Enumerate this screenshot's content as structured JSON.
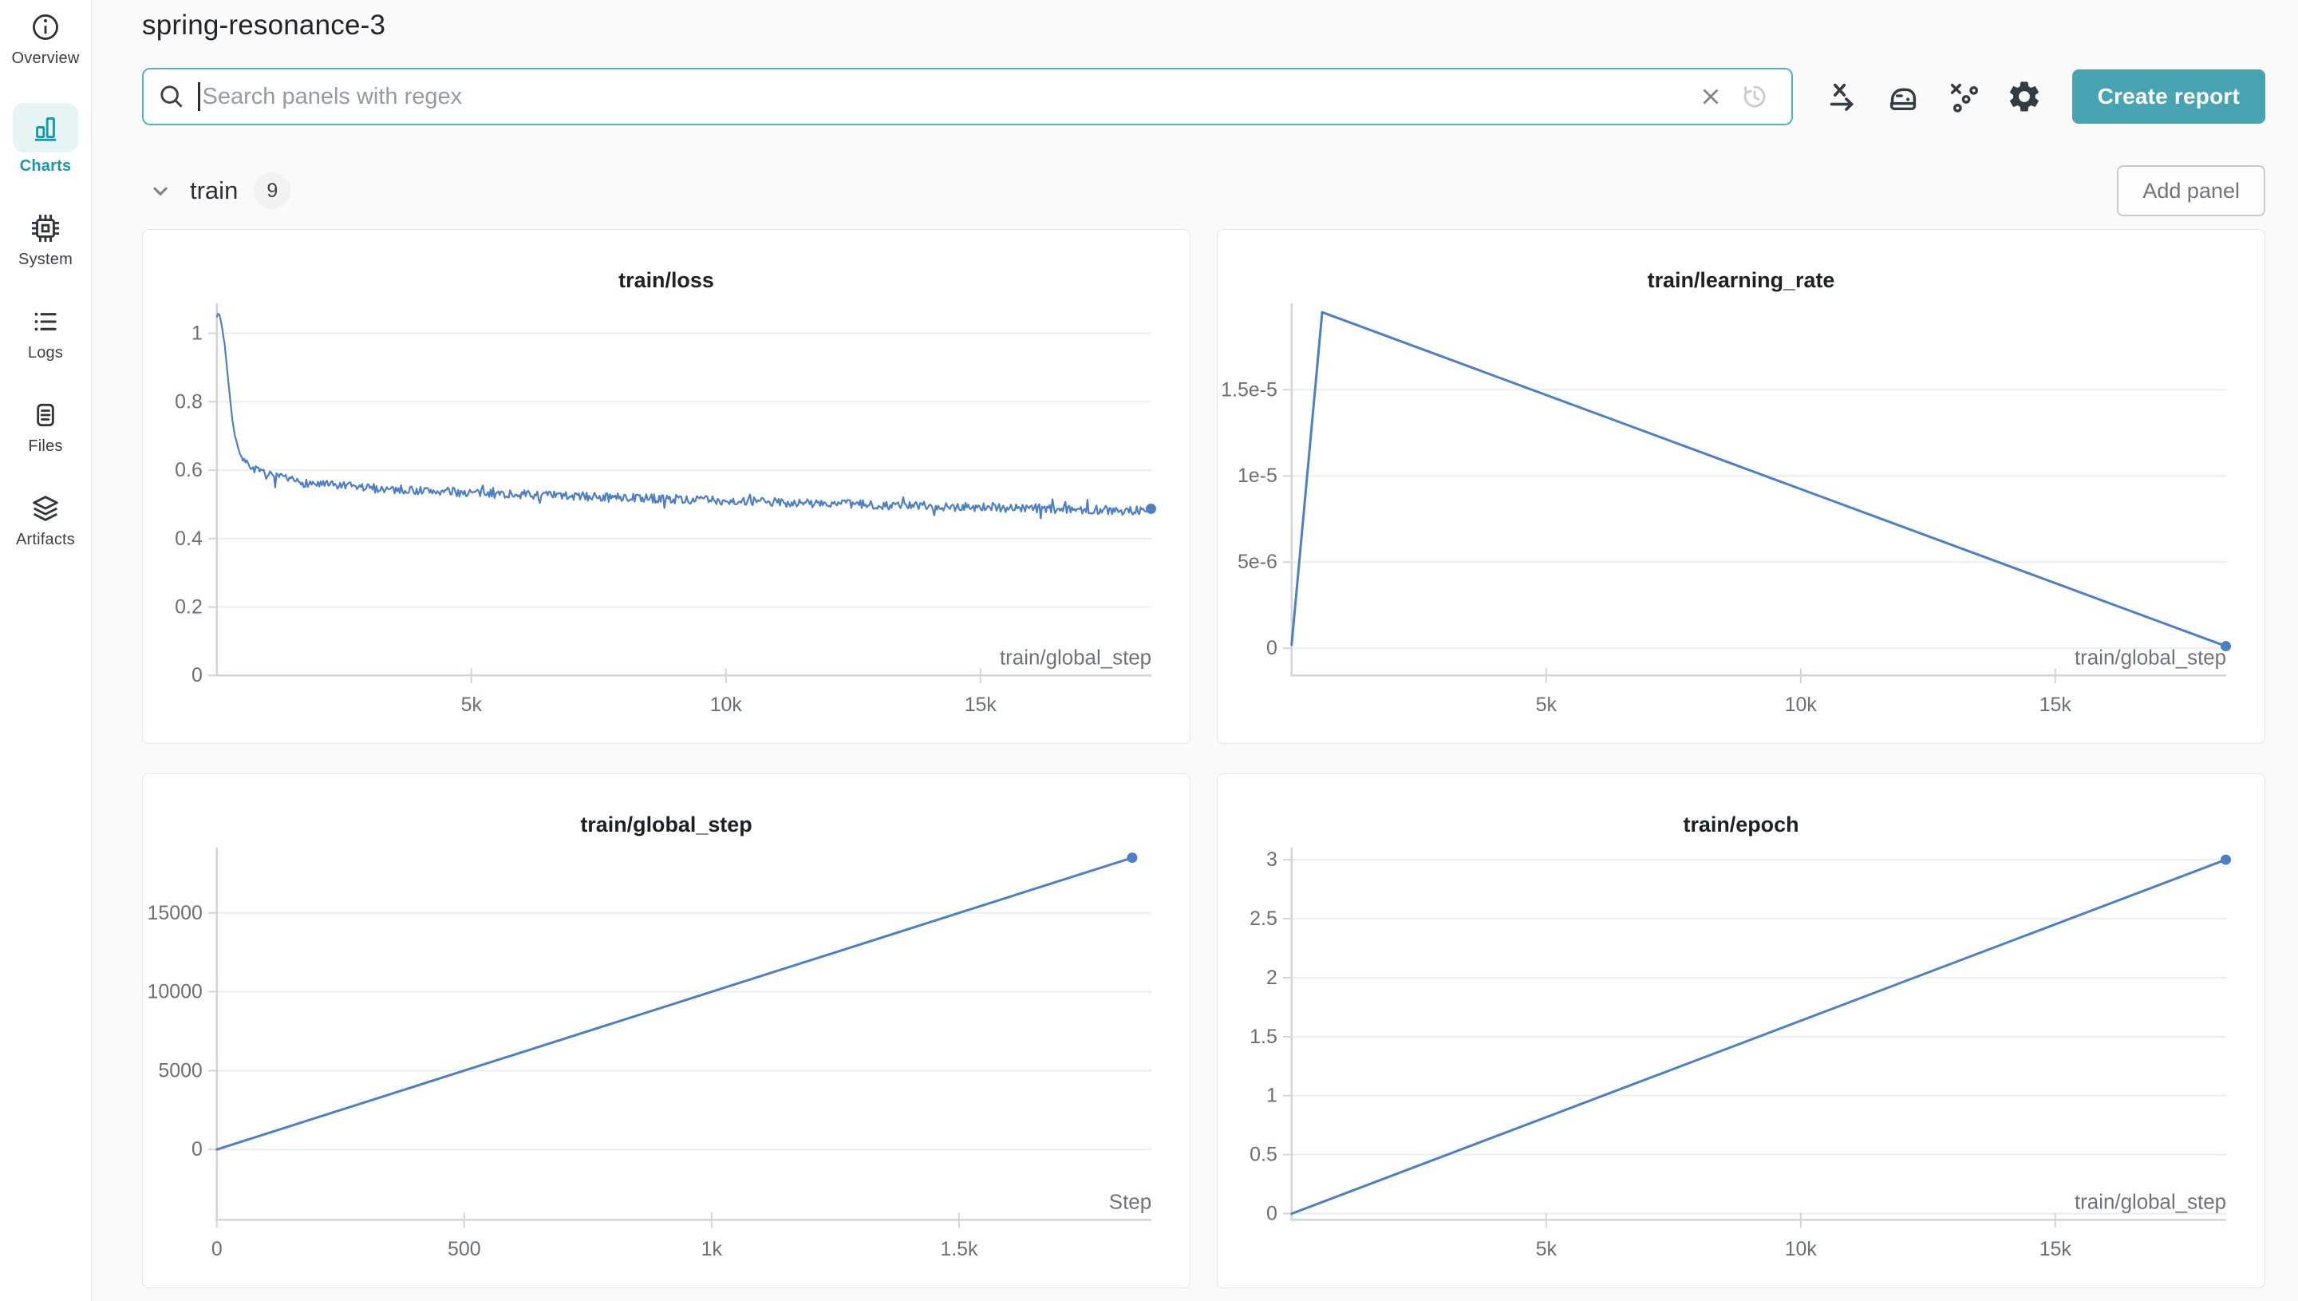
{
  "app": {
    "title": "spring-resonance-3"
  },
  "colors": {
    "accent": "#149aa9",
    "button": "#48a4b2",
    "search_border": "#54b4c1",
    "line_blue": "#4d7fc9",
    "axis": "#d2d5d9",
    "grid": "#ebedef",
    "tick_text": "#697077",
    "label_text": "#6d737a"
  },
  "sidebar": {
    "items": [
      {
        "label": "Overview",
        "icon": "info-icon",
        "active": false
      },
      {
        "label": "Charts",
        "icon": "bar-chart-icon",
        "active": true
      },
      {
        "label": "System",
        "icon": "cpu-icon",
        "active": false
      },
      {
        "label": "Logs",
        "icon": "list-icon",
        "active": false
      },
      {
        "label": "Files",
        "icon": "document-icon",
        "active": false
      },
      {
        "label": "Artifacts",
        "icon": "layers-icon",
        "active": false
      }
    ]
  },
  "search": {
    "placeholder": "Search panels with regex"
  },
  "toolbar": {
    "create_report_label": "Create report",
    "icons": [
      "clear-icon",
      "history-icon",
      "x-axis-icon",
      "smoothing-iron-icon",
      "outliers-icon",
      "gear-icon"
    ]
  },
  "section": {
    "name": "train",
    "count": "9",
    "add_panel_label": "Add panel"
  },
  "chart_data": [
    {
      "type": "noisy_line",
      "title": "train/loss",
      "xlabel": "train/global_step",
      "x_range": [
        0,
        18359
      ],
      "y_range": [
        0,
        1.0698
      ],
      "x_ticks": [
        {
          "v": 5000,
          "label": "5k"
        },
        {
          "v": 10000,
          "label": "10k"
        },
        {
          "v": 15000,
          "label": "15k"
        }
      ],
      "y_ticks": [
        {
          "v": 0,
          "label": "0"
        },
        {
          "v": 0.2,
          "label": "0.2"
        },
        {
          "v": 0.4,
          "label": "0.4"
        },
        {
          "v": 0.6,
          "label": "0.6"
        },
        {
          "v": 0.8,
          "label": "0.8"
        },
        {
          "v": 1,
          "label": "1"
        }
      ],
      "anchors": [
        [
          0,
          1.05
        ],
        [
          40,
          1.06
        ],
        [
          90,
          1.03
        ],
        [
          160,
          0.96
        ],
        [
          240,
          0.84
        ],
        [
          320,
          0.73
        ],
        [
          420,
          0.66
        ],
        [
          550,
          0.625
        ],
        [
          700,
          0.607
        ],
        [
          900,
          0.59
        ],
        [
          1200,
          0.578
        ],
        [
          1600,
          0.565
        ],
        [
          2200,
          0.556
        ],
        [
          3000,
          0.548
        ],
        [
          4000,
          0.54
        ],
        [
          5000,
          0.534
        ],
        [
          6500,
          0.526
        ],
        [
          8000,
          0.52
        ],
        [
          9500,
          0.513
        ],
        [
          11000,
          0.506
        ],
        [
          12500,
          0.5
        ],
        [
          14000,
          0.495
        ],
        [
          15500,
          0.49
        ],
        [
          17000,
          0.485
        ],
        [
          18350,
          0.481
        ]
      ],
      "noise": 0.013,
      "samples": 720,
      "stroke_width": 2.2,
      "end_dot": true,
      "line_color": "#4d7fc9"
    },
    {
      "type": "line",
      "title": "train/learning_rate",
      "xlabel": "train/global_step",
      "x_range": [
        0,
        18359
      ],
      "y_range": [
        -1.58e-06,
        1.966e-05
      ],
      "x_ticks": [
        {
          "v": 5000,
          "label": "5k"
        },
        {
          "v": 10000,
          "label": "10k"
        },
        {
          "v": 15000,
          "label": "15k"
        }
      ],
      "y_ticks": [
        {
          "v": 0,
          "label": "0"
        },
        {
          "v": 5e-06,
          "label": "5e-6"
        },
        {
          "v": 1e-05,
          "label": "1e-5"
        },
        {
          "v": 1.5e-05,
          "label": "1.5e-5"
        }
      ],
      "points": [
        [
          0,
          2e-07
        ],
        [
          600,
          1.95e-05
        ],
        [
          18350,
          1.2e-07
        ]
      ],
      "stroke_width": 3,
      "end_dot": true,
      "line_color": "#4d7fc9"
    },
    {
      "type": "line",
      "title": "train/global_step",
      "xlabel": "Step",
      "x_range": [
        0,
        1889
      ],
      "y_range": [
        -4460,
        18750
      ],
      "x_ticks": [
        {
          "v": 0,
          "label": "0"
        },
        {
          "v": 500,
          "label": "500"
        },
        {
          "v": 1000,
          "label": "1k"
        },
        {
          "v": 1500,
          "label": "1.5k"
        }
      ],
      "y_ticks": [
        {
          "v": 0,
          "label": "0"
        },
        {
          "v": 5000,
          "label": "5000"
        },
        {
          "v": 10000,
          "label": "10000"
        },
        {
          "v": 15000,
          "label": "15000"
        }
      ],
      "points": [
        [
          0,
          0
        ],
        [
          1850,
          18500
        ]
      ],
      "stroke_width": 3,
      "end_dot": true,
      "line_color": "#4d7fc9"
    },
    {
      "type": "line",
      "title": "train/epoch",
      "xlabel": "train/global_step",
      "x_range": [
        0,
        18359
      ],
      "y_range": [
        -0.052,
        3.05
      ],
      "x_ticks": [
        {
          "v": 5000,
          "label": "5k"
        },
        {
          "v": 10000,
          "label": "10k"
        },
        {
          "v": 15000,
          "label": "15k"
        }
      ],
      "y_ticks": [
        {
          "v": 0,
          "label": "0"
        },
        {
          "v": 0.5,
          "label": "0.5"
        },
        {
          "v": 1,
          "label": "1"
        },
        {
          "v": 1.5,
          "label": "1.5"
        },
        {
          "v": 2,
          "label": "2"
        },
        {
          "v": 2.5,
          "label": "2.5"
        },
        {
          "v": 3,
          "label": "3"
        }
      ],
      "points": [
        [
          0,
          0
        ],
        [
          18350,
          3
        ]
      ],
      "stroke_width": 3,
      "end_dot": true,
      "line_color": "#4d7fc9"
    }
  ]
}
